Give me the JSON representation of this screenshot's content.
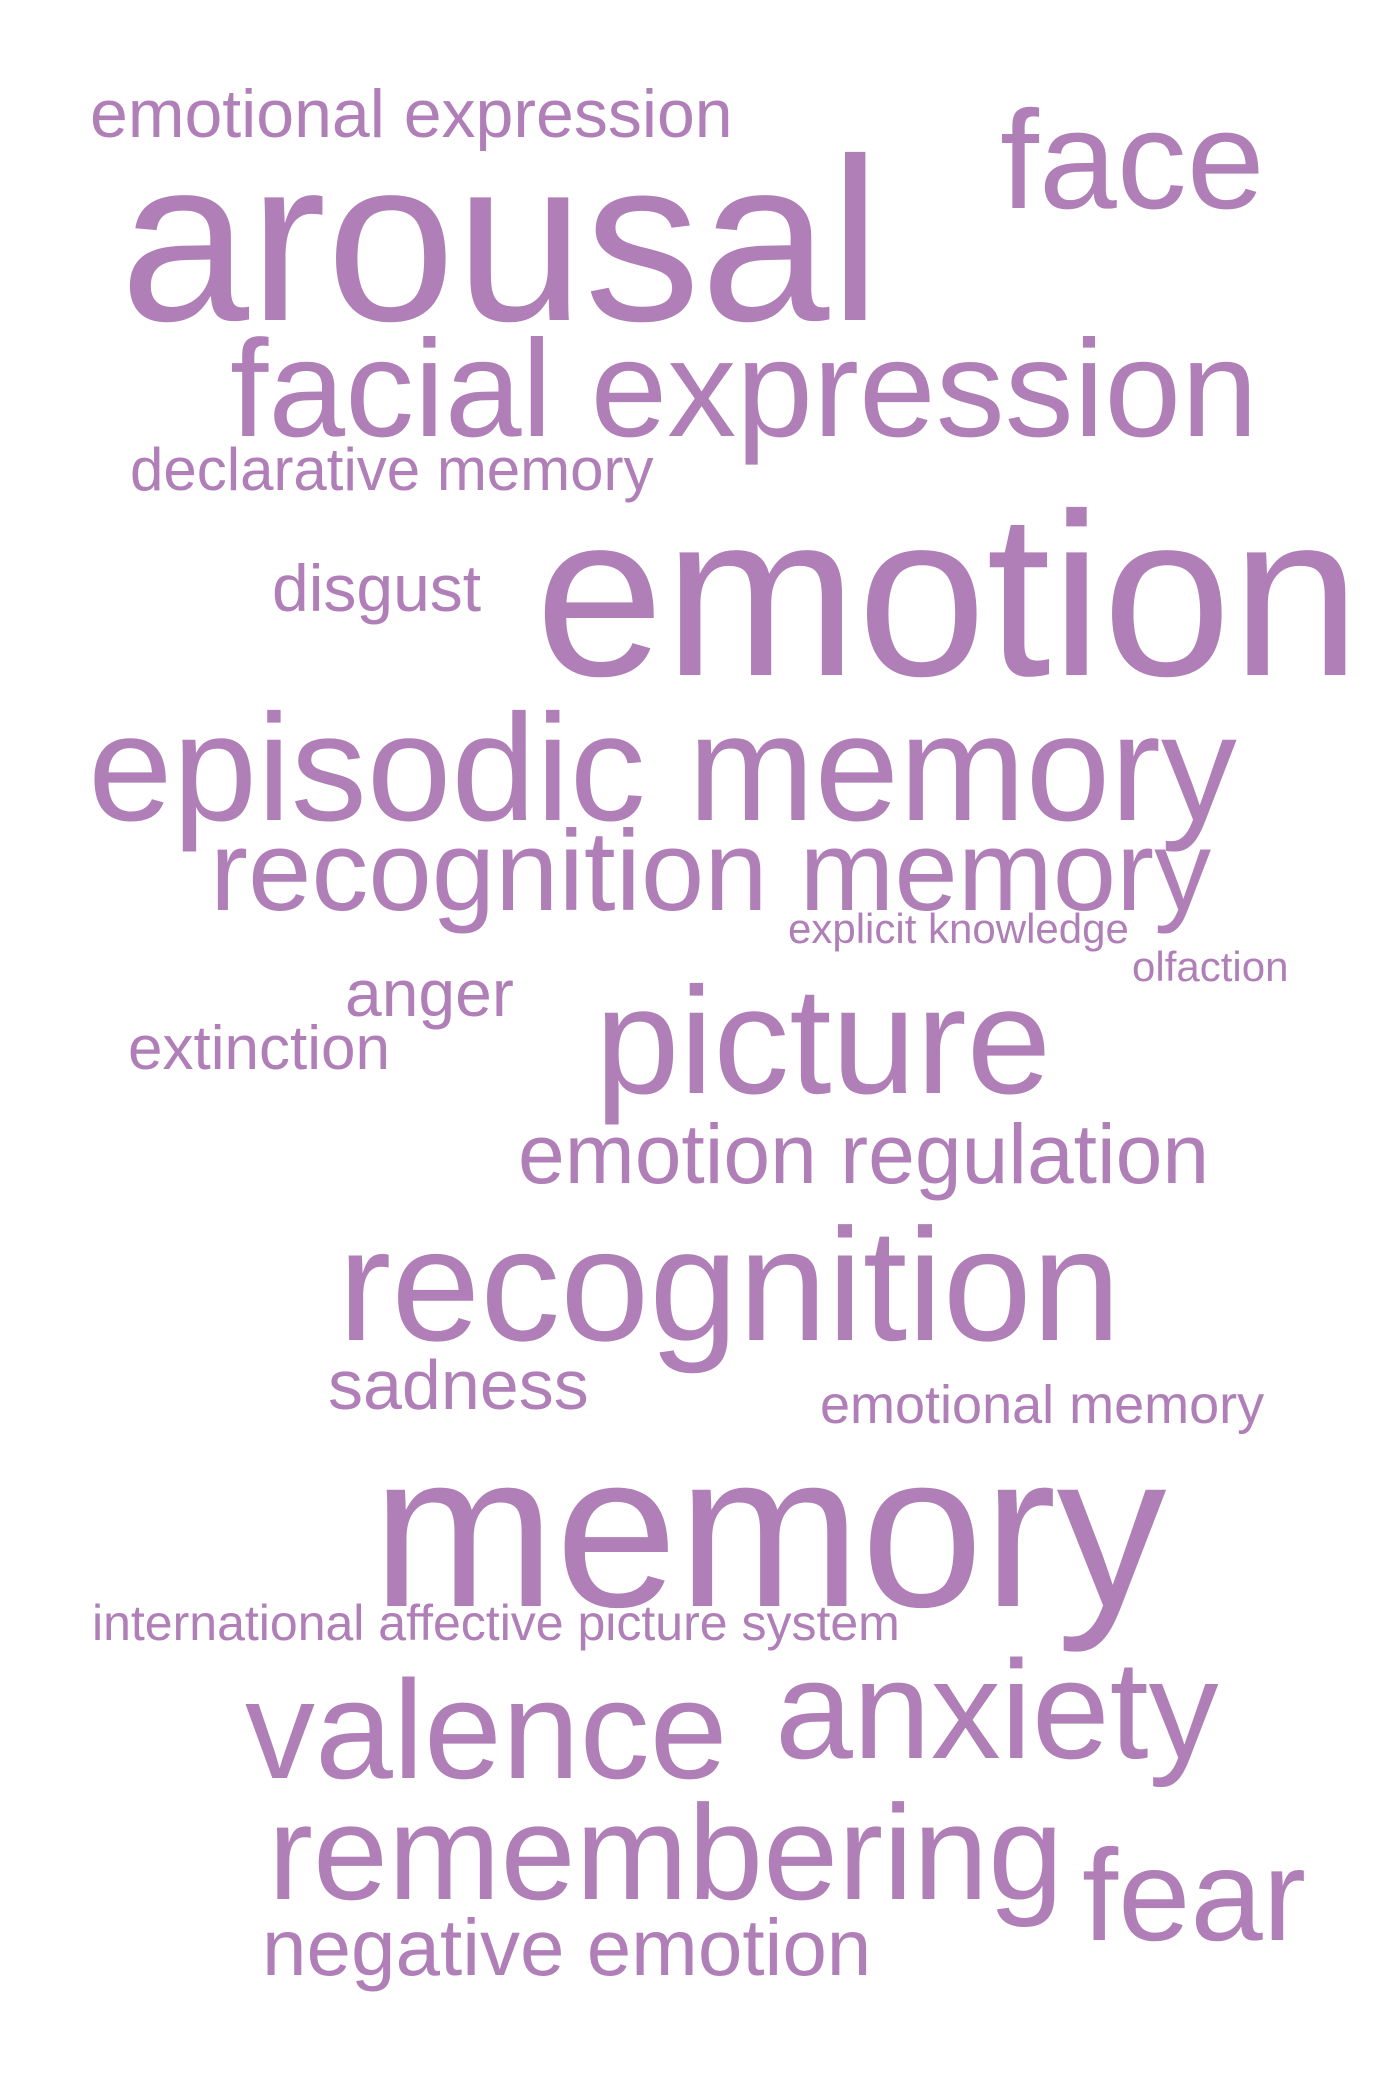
{
  "word_cloud": {
    "color": "#b07fb8",
    "background": "#ffffff",
    "words": {
      "emotional_expression": "emotional expression",
      "face": "face",
      "arousal": "arousal",
      "facial_expression": "facial expression",
      "declarative_memory": "declarative memory",
      "disgust": "disgust",
      "emotion": "emotion",
      "episodic_memory": "episodic memory",
      "recognition_memory": "recognition memory",
      "explicit_knowledge": "explicit knowledge",
      "olfaction": "olfaction",
      "anger": "anger",
      "extinction": "extinction",
      "picture": "picture",
      "emotion_regulation": "emotion regulation",
      "recognition": "recognition",
      "sadness": "sadness",
      "emotional_memory": "emotional memory",
      "memory": "memory",
      "international_affective_picture_system": "international affective picture system",
      "valence": "valence",
      "anxiety": "anxiety",
      "remembering": "remembering",
      "fear": "fear",
      "negative_emotion": "negative emotion"
    }
  }
}
